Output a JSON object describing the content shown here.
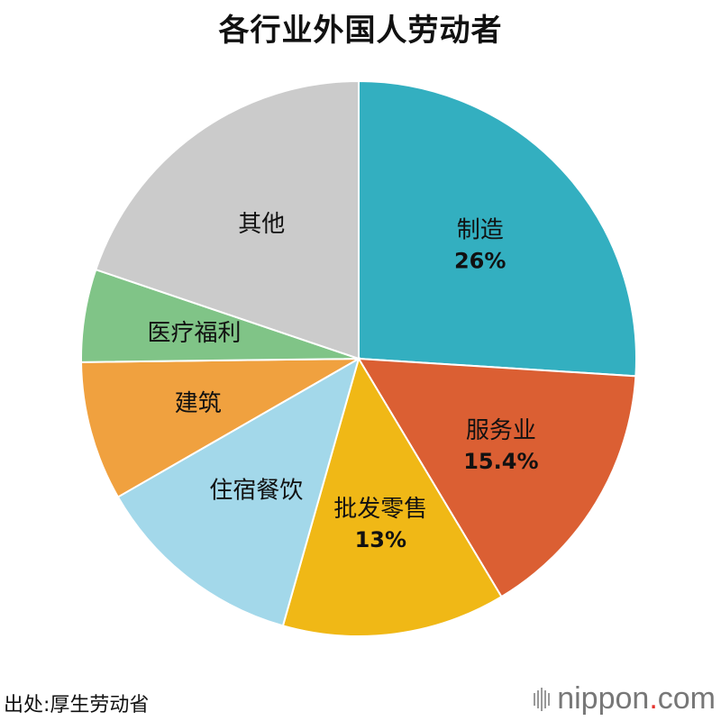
{
  "chart_data": {
    "type": "pie",
    "title": "各行业外国人劳动者",
    "slices": [
      {
        "label": "制造",
        "value": 26,
        "value_label": "26%",
        "color": "#33afc0"
      },
      {
        "label": "服务业",
        "value": 15.4,
        "value_label": "15.4%",
        "color": "#db5f33"
      },
      {
        "label": "批发零售",
        "value": 13,
        "value_label": "13%",
        "color": "#f0b816"
      },
      {
        "label": "住宿餐饮",
        "value": 12.3,
        "value_label": "",
        "color": "#a3d8ea"
      },
      {
        "label": "建筑",
        "value": 8.1,
        "value_label": "",
        "color": "#f0a13f"
      },
      {
        "label": "医疗福利",
        "value": 5.4,
        "value_label": "",
        "color": "#80c487"
      },
      {
        "label": "其他",
        "value": 19.8,
        "value_label": "",
        "color": "#cbcbcb"
      }
    ],
    "start": "12 o'clock",
    "direction": "clockwise"
  },
  "source": "出处:厚生劳动省",
  "logo": {
    "name": "nippon",
    "dot": ".",
    "tld": "com"
  }
}
